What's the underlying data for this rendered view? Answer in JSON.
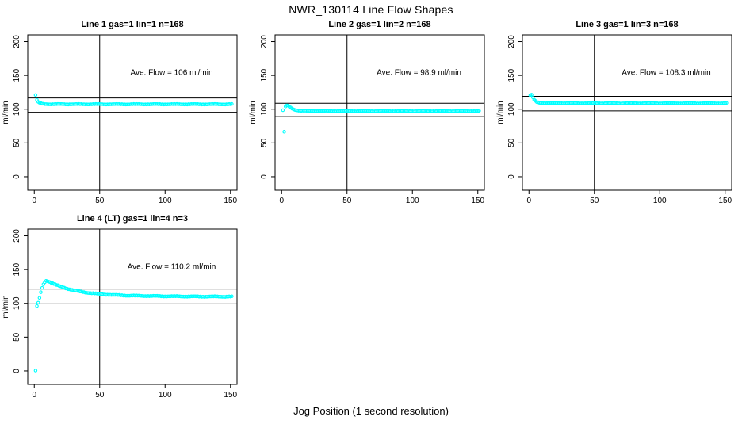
{
  "chart_data": {
    "type": "scatter",
    "title": "NWR_130114  Line Flow Shapes",
    "xlabel": "Jog Position (1 second resolution)",
    "ylabel": "ml/min",
    "point_color": "#00FFFF",
    "axis_color": "#000000",
    "xlim": [
      -5,
      155
    ],
    "ylim": [
      -20,
      210
    ],
    "xticks": [
      0,
      50,
      100,
      150
    ],
    "yticks": [
      0,
      50,
      100,
      150,
      200
    ],
    "vline_x": 50,
    "grid": false,
    "legend": "none",
    "marker": "open-circle",
    "subplots": [
      {
        "title": "Line 1 gas=1 lin=1 n=168",
        "ave_flow_ml_min": 106,
        "annotation": "Ave. Flow =  106  ml/min",
        "limit_lines": [
          116.6,
          95.4
        ],
        "noise_amp": 0.5,
        "keyframes": [
          [
            1,
            121.0
          ],
          [
            2,
            113.6
          ],
          [
            3,
            110.8
          ],
          [
            4,
            109.4
          ],
          [
            5,
            108.6
          ],
          [
            6,
            108.1
          ],
          [
            8,
            107.7
          ],
          [
            12,
            107.4
          ],
          [
            60,
            107.3
          ],
          [
            151,
            107.3
          ]
        ]
      },
      {
        "title": "Line 2 gas=1 lin=2 n=168",
        "ave_flow_ml_min": 98.9,
        "annotation": "Ave. Flow =  98.9  ml/min",
        "limit_lines": [
          108.8,
          89.0
        ],
        "noise_amp": 0.5,
        "keyframes": [
          [
            1,
            98.5
          ],
          [
            2,
            66.5
          ],
          [
            3,
            104.0
          ],
          [
            4,
            105.5
          ],
          [
            5,
            104.8
          ],
          [
            6,
            103.5
          ],
          [
            7,
            102.2
          ],
          [
            8,
            101.0
          ],
          [
            9,
            100.0
          ],
          [
            10,
            99.3
          ],
          [
            12,
            98.4
          ],
          [
            14,
            97.8
          ],
          [
            18,
            97.4
          ],
          [
            60,
            97.2
          ],
          [
            151,
            97.2
          ]
        ]
      },
      {
        "title": "Line 3 gas=1 lin=3 n=168",
        "ave_flow_ml_min": 108.3,
        "annotation": "Ave. Flow =  108.3  ml/min",
        "limit_lines": [
          119.1,
          97.5
        ],
        "noise_amp": 0.5,
        "keyframes": [
          [
            1,
            120.5
          ],
          [
            2,
            121.5
          ],
          [
            3,
            117.5
          ],
          [
            4,
            113.8
          ],
          [
            5,
            111.8
          ],
          [
            6,
            110.5
          ],
          [
            8,
            109.5
          ],
          [
            12,
            109.0
          ],
          [
            60,
            108.8
          ],
          [
            151,
            108.8
          ]
        ]
      },
      {
        "title": "Line 4 (LT) gas=1 lin=4 n=3",
        "ave_flow_ml_min": 110.2,
        "annotation": "Ave. Flow =  110.2  ml/min",
        "limit_lines": [
          121.2,
          99.2
        ],
        "noise_amp": 0.6,
        "keyframes": [
          [
            1,
            0.5
          ],
          [
            2,
            96.0
          ],
          [
            3,
            101.0
          ],
          [
            4,
            108.0
          ],
          [
            5,
            116.0
          ],
          [
            6,
            123.0
          ],
          [
            7,
            128.0
          ],
          [
            8,
            131.5
          ],
          [
            9,
            133.5
          ],
          [
            10,
            133.3
          ],
          [
            12,
            131.8
          ],
          [
            14,
            129.8
          ],
          [
            16,
            128.0
          ],
          [
            18,
            126.4
          ],
          [
            20,
            125.0
          ],
          [
            25,
            122.0
          ],
          [
            30,
            119.5
          ],
          [
            35,
            117.5
          ],
          [
            40,
            116.0
          ],
          [
            50,
            113.8
          ],
          [
            60,
            112.5
          ],
          [
            70,
            111.7
          ],
          [
            80,
            111.2
          ],
          [
            100,
            110.6
          ],
          [
            120,
            110.2
          ],
          [
            151,
            110.0
          ]
        ]
      }
    ]
  }
}
